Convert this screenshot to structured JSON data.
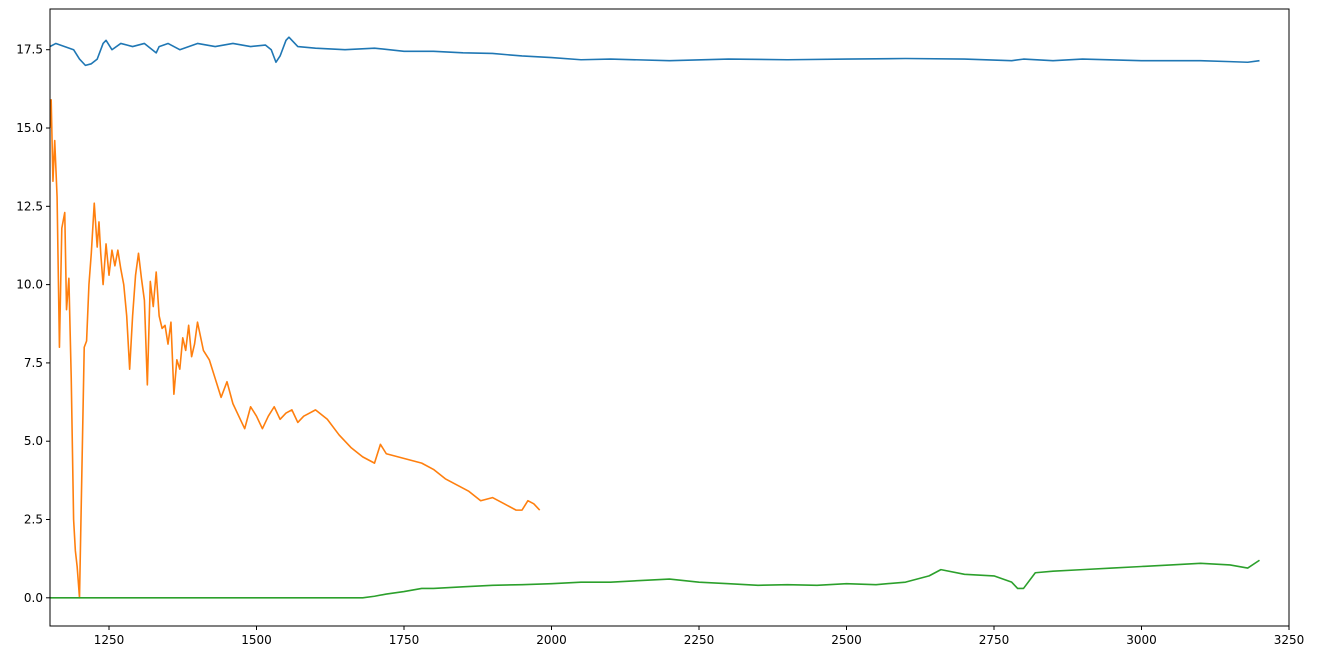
{
  "chart_data": {
    "type": "line",
    "title": "",
    "xlabel": "",
    "ylabel": "",
    "xlim": [
      1150,
      3250
    ],
    "ylim": [
      -0.9,
      18.8
    ],
    "xticks": [
      1250,
      1500,
      1750,
      2000,
      2250,
      2500,
      2750,
      3000,
      3250
    ],
    "yticks": [
      0.0,
      2.5,
      5.0,
      7.5,
      10.0,
      12.5,
      15.0,
      17.5
    ],
    "xtick_labels": [
      "1250",
      "1500",
      "1750",
      "2000",
      "2250",
      "2500",
      "2750",
      "3000",
      "3250"
    ],
    "ytick_labels": [
      "0.0",
      "2.5",
      "5.0",
      "7.5",
      "10.0",
      "12.5",
      "15.0",
      "17.5"
    ],
    "grid": false,
    "legend": "none",
    "series": [
      {
        "color": "#1f77b4",
        "x": [
          1150,
          1160,
          1175,
          1190,
          1200,
          1210,
          1220,
          1230,
          1240,
          1245,
          1255,
          1270,
          1290,
          1310,
          1330,
          1335,
          1350,
          1370,
          1400,
          1430,
          1460,
          1490,
          1515,
          1525,
          1533,
          1540,
          1550,
          1555,
          1570,
          1600,
          1650,
          1700,
          1750,
          1800,
          1850,
          1900,
          1950,
          2000,
          2050,
          2100,
          2200,
          2300,
          2400,
          2500,
          2600,
          2700,
          2780,
          2800,
          2850,
          2900,
          3000,
          3100,
          3150,
          3180,
          3200
        ],
        "y": [
          17.6,
          17.7,
          17.6,
          17.5,
          17.2,
          17.0,
          17.05,
          17.2,
          17.7,
          17.8,
          17.5,
          17.7,
          17.6,
          17.7,
          17.4,
          17.6,
          17.7,
          17.5,
          17.7,
          17.6,
          17.7,
          17.6,
          17.65,
          17.5,
          17.1,
          17.3,
          17.8,
          17.9,
          17.6,
          17.55,
          17.5,
          17.55,
          17.45,
          17.45,
          17.4,
          17.38,
          17.3,
          17.25,
          17.18,
          17.2,
          17.15,
          17.2,
          17.18,
          17.2,
          17.22,
          17.2,
          17.15,
          17.2,
          17.15,
          17.2,
          17.15,
          17.15,
          17.12,
          17.1,
          17.15
        ]
      },
      {
        "color": "#ff7f0e",
        "x": [
          1150,
          1152,
          1155,
          1158,
          1162,
          1166,
          1170,
          1175,
          1178,
          1182,
          1186,
          1190,
          1193,
          1196,
          1200,
          1204,
          1208,
          1212,
          1216,
          1220,
          1225,
          1230,
          1233,
          1236,
          1240,
          1245,
          1250,
          1255,
          1260,
          1265,
          1270,
          1275,
          1280,
          1285,
          1290,
          1295,
          1300,
          1305,
          1310,
          1315,
          1320,
          1325,
          1330,
          1335,
          1340,
          1345,
          1350,
          1355,
          1360,
          1365,
          1370,
          1375,
          1380,
          1385,
          1390,
          1395,
          1400,
          1410,
          1420,
          1430,
          1440,
          1450,
          1460,
          1470,
          1480,
          1490,
          1500,
          1510,
          1520,
          1530,
          1540,
          1550,
          1560,
          1570,
          1580,
          1590,
          1600,
          1620,
          1640,
          1660,
          1680,
          1700,
          1710,
          1720,
          1740,
          1760,
          1780,
          1800,
          1820,
          1840,
          1860,
          1880,
          1900,
          1920,
          1940,
          1950,
          1960,
          1970,
          1980
        ],
        "y": [
          15.0,
          15.9,
          13.3,
          14.6,
          12.8,
          8.0,
          11.8,
          12.3,
          9.2,
          10.2,
          7.0,
          2.5,
          1.5,
          1.0,
          0.0,
          4.0,
          8.0,
          8.2,
          10.0,
          11.0,
          12.6,
          11.2,
          12.0,
          11.0,
          10.0,
          11.3,
          10.3,
          11.1,
          10.6,
          11.1,
          10.5,
          10.0,
          9.0,
          7.3,
          9.0,
          10.3,
          11.0,
          10.2,
          9.5,
          6.8,
          10.1,
          9.3,
          10.4,
          9.0,
          8.6,
          8.7,
          8.1,
          8.8,
          6.5,
          7.6,
          7.3,
          8.3,
          7.9,
          8.7,
          7.7,
          8.1,
          8.8,
          7.9,
          7.6,
          7.0,
          6.4,
          6.9,
          6.2,
          5.8,
          5.4,
          6.1,
          5.8,
          5.4,
          5.8,
          6.1,
          5.7,
          5.9,
          6.0,
          5.6,
          5.8,
          5.9,
          6.0,
          5.7,
          5.2,
          4.8,
          4.5,
          4.3,
          4.9,
          4.6,
          4.5,
          4.4,
          4.3,
          4.1,
          3.8,
          3.6,
          3.4,
          3.1,
          3.2,
          3.0,
          2.8,
          2.8,
          3.1,
          3.0,
          2.8
        ]
      },
      {
        "color": "#2ca02c",
        "x": [
          1150,
          1200,
          1300,
          1400,
          1500,
          1600,
          1680,
          1700,
          1720,
          1750,
          1780,
          1800,
          1850,
          1900,
          1950,
          2000,
          2050,
          2100,
          2150,
          2200,
          2250,
          2300,
          2350,
          2400,
          2450,
          2500,
          2550,
          2600,
          2640,
          2660,
          2700,
          2750,
          2780,
          2790,
          2800,
          2820,
          2850,
          2900,
          2950,
          3000,
          3050,
          3100,
          3150,
          3180,
          3200
        ],
        "y": [
          0.0,
          0.0,
          0.0,
          0.0,
          0.0,
          0.0,
          0.0,
          0.05,
          0.12,
          0.2,
          0.3,
          0.3,
          0.35,
          0.4,
          0.42,
          0.45,
          0.5,
          0.5,
          0.55,
          0.6,
          0.5,
          0.45,
          0.4,
          0.42,
          0.4,
          0.45,
          0.42,
          0.5,
          0.7,
          0.9,
          0.75,
          0.7,
          0.5,
          0.3,
          0.3,
          0.8,
          0.85,
          0.9,
          0.95,
          1.0,
          1.05,
          1.1,
          1.05,
          0.95,
          1.2
        ]
      }
    ]
  }
}
